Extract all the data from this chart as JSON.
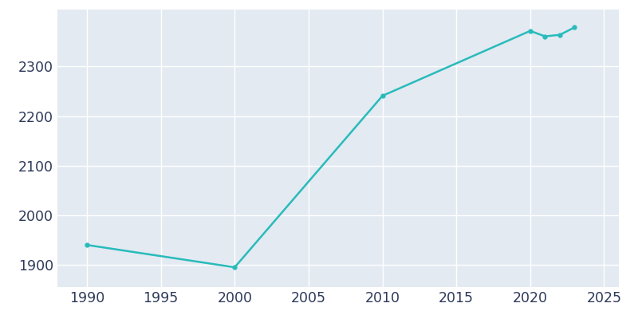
{
  "years": [
    1990,
    2000,
    2010,
    2020,
    2021,
    2022,
    2023
  ],
  "population": [
    1940,
    1895,
    2241,
    2372,
    2361,
    2364,
    2379
  ],
  "line_color": "#29BBBB",
  "marker": "o",
  "marker_size": 3.5,
  "linewidth": 1.8,
  "background_color": "#E3EAF2",
  "grid_color": "#FFFFFF",
  "xlim": [
    1988,
    2026
  ],
  "ylim": [
    1855,
    2415
  ],
  "xticks": [
    1990,
    1995,
    2000,
    2005,
    2010,
    2015,
    2020,
    2025
  ],
  "yticks": [
    1900,
    2000,
    2100,
    2200,
    2300
  ],
  "tick_label_color": "#2E3A5A",
  "tick_fontsize": 12.5,
  "fig_background_color": "#FFFFFF"
}
